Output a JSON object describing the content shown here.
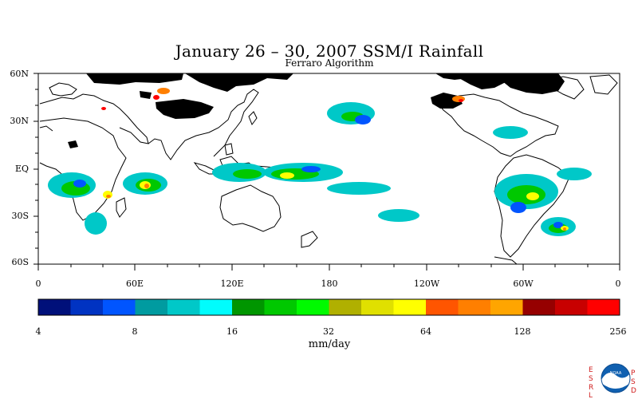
{
  "title": "January 26 – 30, 2007 SSM/I Rainfall",
  "subtitle": "Ferraro Algorithm",
  "lat_labels": [
    "60N",
    "30N",
    "EQ",
    "30S",
    "60S"
  ],
  "lon_labels": [
    "0",
    "60E",
    "120E",
    "180",
    "120W",
    "60W",
    "0"
  ],
  "colorbar": {
    "ticks": [
      "4",
      "8",
      "16",
      "32",
      "64",
      "128",
      "256"
    ],
    "unit": "mm/day",
    "colors": [
      "#00107a",
      "#0033c2",
      "#0055ff",
      "#009ba0",
      "#00c8c8",
      "#00fdfd",
      "#009600",
      "#00c800",
      "#00fa00",
      "#b0b000",
      "#e0e000",
      "#ffff00",
      "#ff5500",
      "#ff7f00",
      "#ffa500",
      "#960000",
      "#c80000",
      "#ff0000"
    ]
  },
  "logo": {
    "left_letters": [
      "E",
      "S",
      "R",
      "L"
    ],
    "right_letters": [
      "P",
      "S",
      "D"
    ],
    "emblem_text": "NOAA"
  },
  "colors": {
    "land_outline": "#000000",
    "missing_data": "#000000"
  }
}
